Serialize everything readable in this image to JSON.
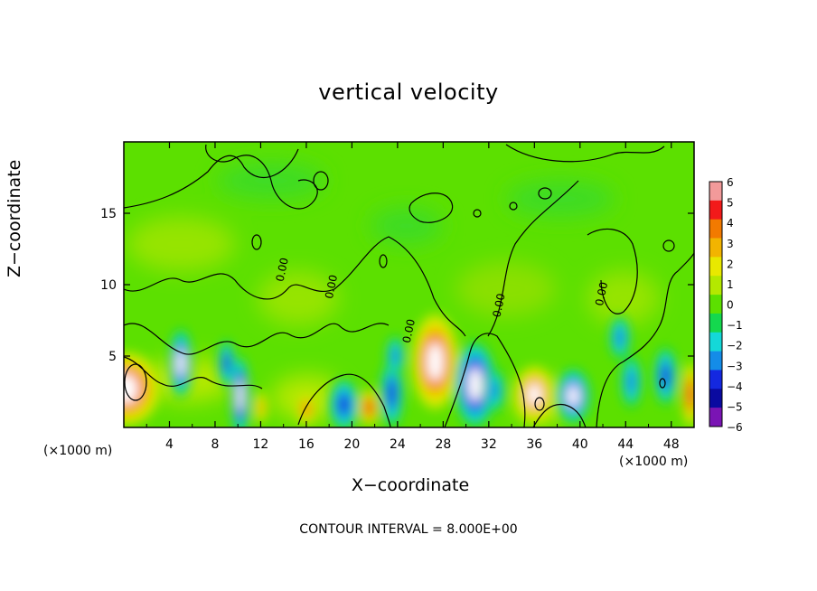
{
  "chart_data": {
    "type": "heatmap",
    "title": "vertical velocity",
    "xlabel": "X−coordinate",
    "ylabel": "Z−coordinate",
    "x_unit_left": "(×1000 m)",
    "x_unit_right": "(×1000 m)",
    "footer": "CONTOUR INTERVAL = 8.000E+00",
    "xlim": [
      0,
      50
    ],
    "ylim": [
      0,
      20
    ],
    "x_ticks": [
      4,
      8,
      12,
      16,
      20,
      24,
      28,
      32,
      36,
      40,
      44,
      48
    ],
    "x_tick_labels": [
      "4",
      "8",
      "12",
      "16",
      "20",
      "24",
      "28",
      "32",
      "36",
      "40",
      "44",
      "48"
    ],
    "y_ticks": [
      5,
      10,
      15
    ],
    "y_tick_labels": [
      "5",
      "10",
      "15"
    ],
    "contour_labels": [
      {
        "text": "0.00",
        "x": 14.2,
        "y": 11.0
      },
      {
        "text": "0.00",
        "x": 18.5,
        "y": 9.8
      },
      {
        "text": "0.00",
        "x": 25.3,
        "y": 6.7
      },
      {
        "text": "0.00",
        "x": 33.2,
        "y": 8.5
      },
      {
        "text": "0.00",
        "x": 42.2,
        "y": 9.3
      }
    ],
    "colorbar": {
      "min": -6,
      "max": 6,
      "levels": [
        "6",
        "5",
        "4",
        "3",
        "2",
        "1",
        "0",
        "−1",
        "−2",
        "−3",
        "−4",
        "−5",
        "−6"
      ],
      "colors": [
        "#f29a9a",
        "#f21a1a",
        "#f27a00",
        "#f2b400",
        "#e8e800",
        "#b4e800",
        "#5ce000",
        "#14d84e",
        "#14d8d8",
        "#148ce8",
        "#1428e0",
        "#0a0aa0",
        "#7a14b4"
      ]
    },
    "cells": [
      {
        "x": 0.2,
        "y": 2.7,
        "w": 3.0,
        "rx": 3.0,
        "ry": 2.6,
        "v": 5.5
      },
      {
        "x": 5.0,
        "y": 4.5,
        "w": 1.1,
        "rx": 1.0,
        "ry": 2.4,
        "v": -5.0
      },
      {
        "x": 10.2,
        "y": 2.2,
        "w": 0.8,
        "rx": 0.8,
        "ry": 2.8,
        "v": -5.5
      },
      {
        "x": 9.0,
        "y": 4.5,
        "w": 0.7,
        "rx": 0.7,
        "ry": 1.6,
        "v": -3.5
      },
      {
        "x": 12.0,
        "y": 1.4,
        "w": 0.6,
        "rx": 0.6,
        "ry": 1.1,
        "v": 2.5
      },
      {
        "x": 16.0,
        "y": 1.3,
        "w": 0.8,
        "rx": 0.8,
        "ry": 1.1,
        "v": 4.0
      },
      {
        "x": 19.3,
        "y": 1.6,
        "w": 1.3,
        "rx": 1.3,
        "ry": 1.8,
        "v": -3.5
      },
      {
        "x": 21.5,
        "y": 1.4,
        "w": 0.9,
        "rx": 0.9,
        "ry": 1.3,
        "v": 4.5
      },
      {
        "x": 23.5,
        "y": 2.4,
        "w": 1.0,
        "rx": 1.0,
        "ry": 2.4,
        "v": -3.5
      },
      {
        "x": 23.8,
        "y": 5.0,
        "w": 0.8,
        "rx": 0.8,
        "ry": 1.4,
        "v": -2.5
      },
      {
        "x": 27.3,
        "y": 4.6,
        "w": 2.1,
        "rx": 2.1,
        "ry": 3.4,
        "v": 5.5
      },
      {
        "x": 30.8,
        "y": 3.0,
        "w": 1.8,
        "rx": 1.8,
        "ry": 3.0,
        "v": -5.5
      },
      {
        "x": 32.5,
        "y": 2.6,
        "w": 0.9,
        "rx": 0.9,
        "ry": 1.5,
        "v": -3.0
      },
      {
        "x": 36.0,
        "y": 2.3,
        "w": 1.8,
        "rx": 1.8,
        "ry": 2.0,
        "v": 5.0
      },
      {
        "x": 39.4,
        "y": 2.2,
        "w": 1.5,
        "rx": 1.5,
        "ry": 1.9,
        "v": -5.0
      },
      {
        "x": 43.5,
        "y": 6.3,
        "w": 0.9,
        "rx": 0.9,
        "ry": 1.5,
        "v": -2.5
      },
      {
        "x": 44.5,
        "y": 3.2,
        "w": 0.9,
        "rx": 0.9,
        "ry": 1.8,
        "v": -3.0
      },
      {
        "x": 47.5,
        "y": 3.6,
        "w": 1.0,
        "rx": 1.0,
        "ry": 2.0,
        "v": -4.0
      },
      {
        "x": 49.7,
        "y": 2.3,
        "w": 0.8,
        "rx": 0.8,
        "ry": 2.3,
        "v": 4.5
      }
    ]
  }
}
